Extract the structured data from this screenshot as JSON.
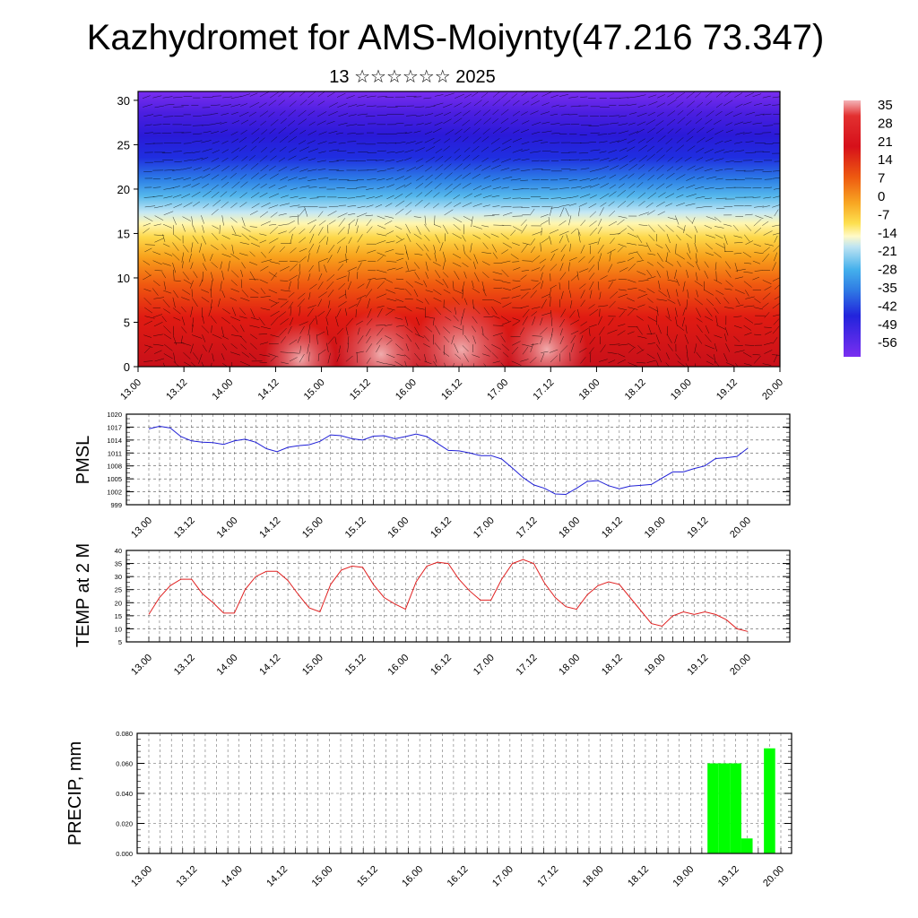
{
  "title": "Kazhydromet for AMS-Moiynty(47.216 73.347)",
  "subtitle": "13 ☆☆☆☆☆☆ 2025",
  "colors": {
    "pmsl": "#1f1fd6",
    "temp": "#e02020",
    "precip": "#00ff00",
    "grid": "#555555"
  },
  "time_ticks": [
    "13.00",
    "13.12",
    "14.00",
    "14.12",
    "15.00",
    "15.12",
    "16.00",
    "16.12",
    "17.00",
    "17.12",
    "18.00",
    "18.12",
    "19.00",
    "19.12",
    "20.00"
  ],
  "chart_data": [
    {
      "type": "heatmap",
      "y_ticks": [
        "0",
        "5",
        "10",
        "15",
        "20",
        "25",
        "30"
      ],
      "ylim": [
        0,
        31
      ],
      "colorbar_labels": [
        "35",
        "28",
        "21",
        "14",
        "7",
        "0",
        "-7",
        "-14",
        "-21",
        "-28",
        "-35",
        "-42",
        "-49",
        "-56"
      ],
      "colorbar_range": [
        -60,
        38
      ],
      "vector_overlay": true
    },
    {
      "type": "line",
      "ylabel": "PMSL",
      "y_ticks": [
        "1020",
        "1017",
        "1014",
        "1011",
        "1008",
        "1005",
        "1002",
        "999"
      ],
      "ylim": [
        999,
        1020
      ],
      "series": [
        {
          "values": [
            1016.6,
            1017.2,
            1016.8,
            1014.8,
            1013.8,
            1013.5,
            1013.4,
            1013.0,
            1013.8,
            1014.2,
            1013.5,
            1012.0,
            1011.3,
            1012.3,
            1012.7,
            1012.9,
            1013.7,
            1015.2,
            1015.0,
            1014.3,
            1014.0,
            1014.9,
            1015.0,
            1014.3,
            1014.8,
            1015.4,
            1014.8,
            1013.2,
            1011.6,
            1011.5,
            1011.0,
            1010.4,
            1010.4,
            1009.6,
            1007.5,
            1005.3,
            1003.6,
            1002.8,
            1001.5,
            1001.4,
            1002.8,
            1004.4,
            1004.6,
            1003.4,
            1002.7,
            1003.3,
            1003.5,
            1003.7,
            1005.2,
            1006.6,
            1006.6,
            1007.4,
            1008.0,
            1009.7,
            1009.9,
            1010.2,
            1012.1
          ]
        }
      ]
    },
    {
      "type": "line",
      "ylabel": "TEMP at 2 M",
      "y_ticks": [
        "40",
        "35",
        "30",
        "25",
        "20",
        "15",
        "10",
        "5"
      ],
      "ylim": [
        5,
        40
      ],
      "series": [
        {
          "values": [
            15.5,
            22.0,
            26.5,
            29.0,
            29.0,
            23.5,
            20.0,
            16.0,
            16.0,
            25.0,
            30.0,
            32.0,
            32.0,
            28.5,
            23.0,
            18.0,
            16.5,
            27.0,
            32.5,
            34.0,
            33.5,
            27.0,
            22.0,
            19.5,
            17.5,
            28.0,
            34.0,
            35.5,
            35.0,
            29.0,
            24.5,
            21.0,
            21.0,
            29.0,
            35.0,
            36.5,
            35.0,
            27.5,
            22.0,
            18.5,
            17.5,
            23.0,
            26.5,
            28.0,
            27.0,
            22.0,
            17.0,
            12.0,
            11.0,
            15.0,
            16.5,
            15.5,
            16.5,
            15.5,
            13.5,
            10.0,
            9.0
          ]
        }
      ]
    },
    {
      "type": "bar",
      "ylabel": "PRECIP, mm",
      "y_ticks": [
        "0.080",
        "0.060",
        "0.040",
        "0.020",
        "0.000"
      ],
      "ylim": [
        0,
        0.08
      ],
      "bars": [
        {
          "time_index": 50,
          "value": 0.06
        },
        {
          "time_index": 51,
          "value": 0.06
        },
        {
          "time_index": 52,
          "value": 0.06
        },
        {
          "time_index": 53,
          "value": 0.01
        },
        {
          "time_index": 54,
          "value": 0.0
        },
        {
          "time_index": 55,
          "value": 0.07
        }
      ]
    }
  ]
}
